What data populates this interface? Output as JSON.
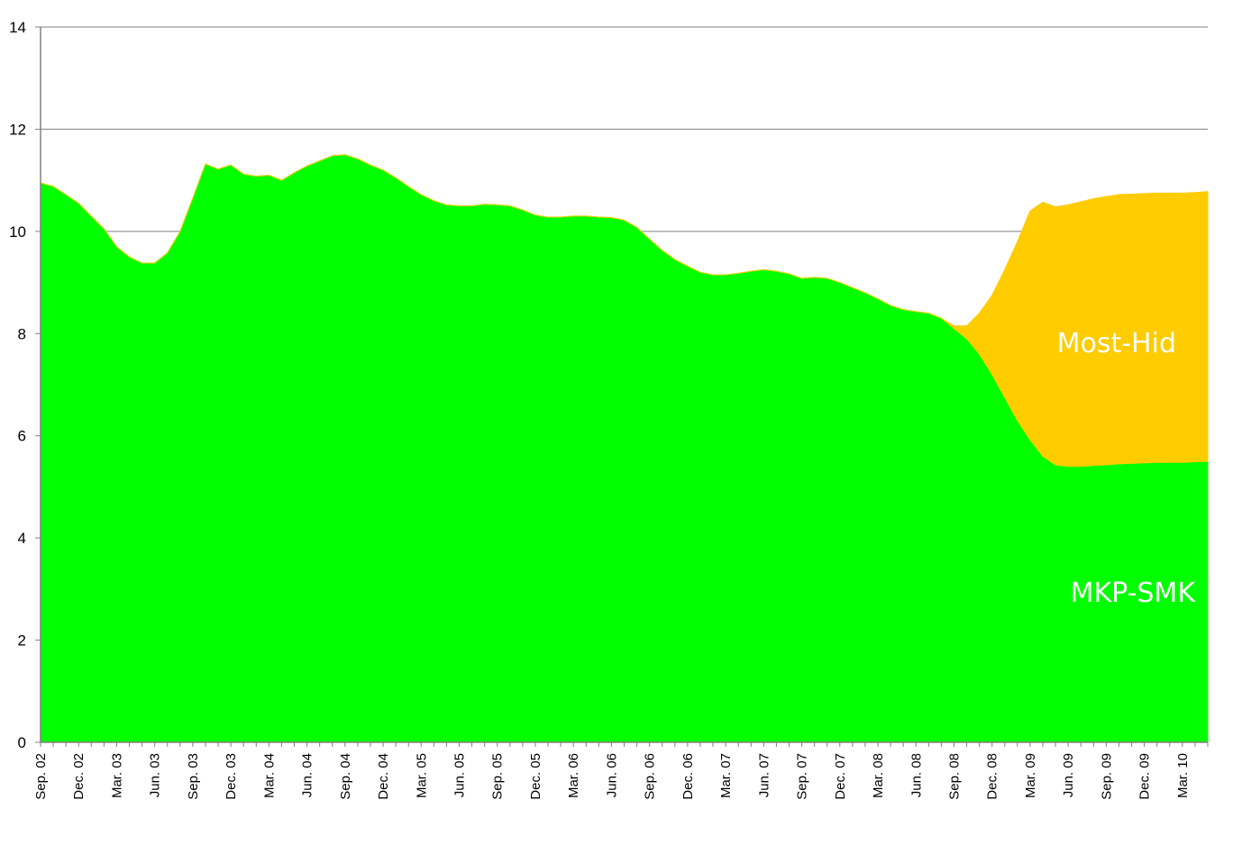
{
  "chart_data": {
    "type": "area",
    "stacked": true,
    "title": "",
    "xlabel": "",
    "ylabel": "",
    "ylim": [
      0,
      14
    ],
    "yticks": [
      0,
      2,
      4,
      6,
      8,
      10,
      12,
      14
    ],
    "grid": "horizontal",
    "x_tick_labels": [
      "Sep. 02",
      "Dec. 02",
      "Mar. 03",
      "Jun. 03",
      "Sep. 03",
      "Dec. 03",
      "Mar. 04",
      "Jun. 04",
      "Sep. 04",
      "Dec. 04",
      "Mar. 05",
      "Jun. 05",
      "Sep. 05",
      "Dec. 05",
      "Mar. 06",
      "Jun. 06",
      "Sep. 06",
      "Dec. 06",
      "Mar. 07",
      "Jun. 07",
      "Sep. 07",
      "Dec. 07",
      "Mar. 08",
      "Jun. 08",
      "Sep. 08",
      "Dec. 08",
      "Mar. 09",
      "Jun. 09",
      "Sep. 09",
      "Dec. 09",
      "Mar. 10"
    ],
    "x": [
      "2002-09",
      "2002-10",
      "2002-11",
      "2002-12",
      "2003-01",
      "2003-02",
      "2003-03",
      "2003-04",
      "2003-05",
      "2003-06",
      "2003-07",
      "2003-08",
      "2003-09",
      "2003-10",
      "2003-11",
      "2003-12",
      "2004-01",
      "2004-02",
      "2004-03",
      "2004-04",
      "2004-05",
      "2004-06",
      "2004-07",
      "2004-08",
      "2004-09",
      "2004-10",
      "2004-11",
      "2004-12",
      "2005-01",
      "2005-02",
      "2005-03",
      "2005-04",
      "2005-05",
      "2005-06",
      "2005-07",
      "2005-08",
      "2005-09",
      "2005-10",
      "2005-11",
      "2005-12",
      "2006-01",
      "2006-02",
      "2006-03",
      "2006-04",
      "2006-05",
      "2006-06",
      "2006-07",
      "2006-08",
      "2006-09",
      "2006-10",
      "2006-11",
      "2006-12",
      "2007-01",
      "2007-02",
      "2007-03",
      "2007-04",
      "2007-05",
      "2007-06",
      "2007-07",
      "2007-08",
      "2007-09",
      "2007-10",
      "2007-11",
      "2007-12",
      "2008-01",
      "2008-02",
      "2008-03",
      "2008-04",
      "2008-05",
      "2008-06",
      "2008-07",
      "2008-08",
      "2008-09",
      "2008-10",
      "2008-11",
      "2008-12",
      "2009-01",
      "2009-02",
      "2009-03",
      "2009-04",
      "2009-05",
      "2009-06",
      "2009-07",
      "2009-08",
      "2009-09",
      "2009-10",
      "2009-11",
      "2009-12",
      "2010-01",
      "2010-02",
      "2010-03",
      "2010-04",
      "2010-05"
    ],
    "series": [
      {
        "name": "MKP-SMK",
        "color": "#00ff00",
        "values": [
          10.95,
          10.88,
          10.72,
          10.55,
          10.3,
          10.05,
          9.7,
          9.5,
          9.38,
          9.38,
          9.58,
          10.0,
          10.65,
          11.32,
          11.22,
          11.3,
          11.12,
          11.08,
          11.1,
          11.0,
          11.15,
          11.28,
          11.38,
          11.48,
          11.5,
          11.42,
          11.3,
          11.2,
          11.05,
          10.88,
          10.72,
          10.6,
          10.52,
          10.5,
          10.5,
          10.53,
          10.52,
          10.5,
          10.42,
          10.32,
          10.28,
          10.28,
          10.3,
          10.3,
          10.28,
          10.27,
          10.22,
          10.08,
          9.85,
          9.63,
          9.45,
          9.32,
          9.2,
          9.15,
          9.15,
          9.18,
          9.22,
          9.25,
          9.22,
          9.17,
          9.08,
          9.1,
          9.08,
          9.0,
          8.9,
          8.8,
          8.68,
          8.55,
          8.47,
          8.43,
          8.4,
          8.3,
          8.1,
          7.9,
          7.6,
          7.2,
          6.75,
          6.3,
          5.92,
          5.6,
          5.43,
          5.4,
          5.4,
          5.42,
          5.43,
          5.45,
          5.46,
          5.47,
          5.48,
          5.48,
          5.48,
          5.49,
          5.5
        ]
      },
      {
        "name": "Most-Hid",
        "color": "#ffcc00",
        "values": [
          0,
          0,
          0,
          0,
          0,
          0,
          0,
          0,
          0,
          0,
          0,
          0,
          0,
          0,
          0,
          0,
          0,
          0,
          0,
          0,
          0,
          0,
          0,
          0,
          0,
          0,
          0,
          0,
          0,
          0,
          0,
          0,
          0,
          0,
          0,
          0,
          0,
          0,
          0,
          0,
          0,
          0,
          0,
          0,
          0,
          0,
          0,
          0,
          0,
          0,
          0,
          0,
          0,
          0,
          0,
          0,
          0,
          0,
          0,
          0,
          0,
          0,
          0,
          0,
          0,
          0,
          0,
          0,
          0,
          0,
          0,
          0,
          0.05,
          0.25,
          0.8,
          1.55,
          2.5,
          3.5,
          4.48,
          4.97,
          5.05,
          5.12,
          5.18,
          5.22,
          5.25,
          5.27,
          5.27,
          5.27,
          5.27,
          5.27,
          5.27,
          5.27,
          5.28
        ]
      }
    ]
  }
}
